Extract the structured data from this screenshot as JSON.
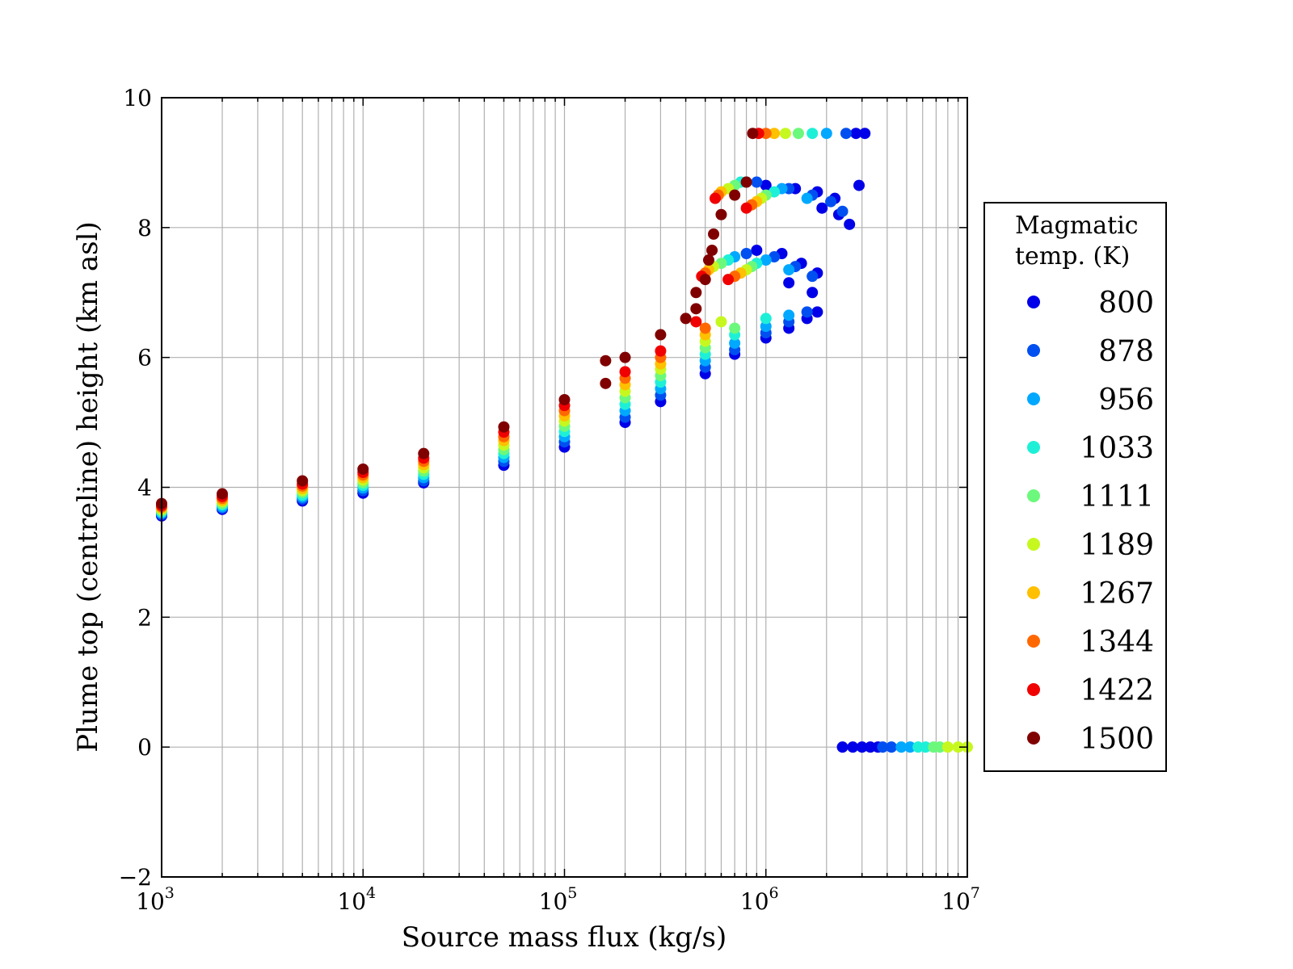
{
  "chart_data": {
    "type": "scatter",
    "xlabel": "Source mass flux (kg/s)",
    "ylabel": "Plume top (centreline) height (km asl)",
    "x_scale": "log",
    "xlim": [
      1000,
      10000000
    ],
    "ylim": [
      -2,
      10
    ],
    "x_ticks": [
      {
        "base": "10",
        "exp": "3",
        "value": 1000
      },
      {
        "base": "10",
        "exp": "4",
        "value": 10000
      },
      {
        "base": "10",
        "exp": "5",
        "value": 100000
      },
      {
        "base": "10",
        "exp": "6",
        "value": 1000000
      },
      {
        "base": "10",
        "exp": "7",
        "value": 10000000
      }
    ],
    "y_ticks": [
      {
        "label": "−2",
        "value": -2
      },
      {
        "label": "0",
        "value": 0
      },
      {
        "label": "2",
        "value": 2
      },
      {
        "label": "4",
        "value": 4
      },
      {
        "label": "6",
        "value": 6
      },
      {
        "label": "8",
        "value": 8
      },
      {
        "label": "10",
        "value": 10
      }
    ],
    "grid": true,
    "legend": {
      "title_lines": [
        "Magmatic",
        "temp. (K)"
      ],
      "placement": "right-outside"
    },
    "series": [
      {
        "name": "800",
        "color": "#0000e8",
        "points": [
          [
            1000,
            3.56
          ],
          [
            2000,
            3.66
          ],
          [
            5000,
            3.79
          ],
          [
            10000,
            3.91
          ],
          [
            20000,
            4.07
          ],
          [
            50000,
            4.34
          ],
          [
            100000,
            4.62
          ],
          [
            200000,
            5.0
          ],
          [
            300000,
            5.32
          ],
          [
            500000,
            5.75
          ],
          [
            700000,
            6.05
          ],
          [
            1000000,
            6.3
          ],
          [
            1300000,
            6.45
          ],
          [
            1600000,
            6.6
          ],
          [
            1800000,
            6.7
          ],
          [
            900000,
            7.65
          ],
          [
            1200000,
            7.6
          ],
          [
            1500000,
            7.45
          ],
          [
            1800000,
            7.3
          ],
          [
            1300000,
            7.15
          ],
          [
            1700000,
            7.0
          ],
          [
            1000000,
            8.65
          ],
          [
            1400000,
            8.6
          ],
          [
            1800000,
            8.55
          ],
          [
            2200000,
            8.45
          ],
          [
            1900000,
            8.3
          ],
          [
            2300000,
            8.2
          ],
          [
            2600000,
            8.05
          ],
          [
            2900000,
            8.65
          ],
          [
            2800000,
            9.45
          ],
          [
            3100000,
            9.45
          ],
          [
            2400000,
            0
          ],
          [
            2700000,
            0
          ],
          [
            3000000,
            0
          ],
          [
            3300000,
            0
          ],
          [
            3600000,
            0
          ]
        ]
      },
      {
        "name": "878",
        "color": "#004ff0",
        "points": [
          [
            1000,
            3.58
          ],
          [
            2000,
            3.68
          ],
          [
            5000,
            3.82
          ],
          [
            10000,
            3.95
          ],
          [
            20000,
            4.1
          ],
          [
            50000,
            4.4
          ],
          [
            100000,
            4.7
          ],
          [
            200000,
            5.08
          ],
          [
            300000,
            5.42
          ],
          [
            500000,
            5.85
          ],
          [
            700000,
            6.12
          ],
          [
            1000000,
            6.38
          ],
          [
            1300000,
            6.55
          ],
          [
            1600000,
            6.7
          ],
          [
            800000,
            7.6
          ],
          [
            1100000,
            7.55
          ],
          [
            1400000,
            7.4
          ],
          [
            1700000,
            7.25
          ],
          [
            900000,
            8.7
          ],
          [
            1300000,
            8.6
          ],
          [
            1700000,
            8.5
          ],
          [
            2100000,
            8.4
          ],
          [
            2400000,
            8.25
          ],
          [
            2500000,
            9.45
          ],
          [
            3800000,
            0
          ],
          [
            4200000,
            0
          ]
        ]
      },
      {
        "name": "956",
        "color": "#00a8ff",
        "points": [
          [
            1000,
            3.6
          ],
          [
            2000,
            3.7
          ],
          [
            5000,
            3.85
          ],
          [
            10000,
            3.99
          ],
          [
            20000,
            4.15
          ],
          [
            50000,
            4.46
          ],
          [
            100000,
            4.78
          ],
          [
            200000,
            5.18
          ],
          [
            300000,
            5.52
          ],
          [
            500000,
            5.95
          ],
          [
            700000,
            6.22
          ],
          [
            1000000,
            6.48
          ],
          [
            1300000,
            6.65
          ],
          [
            700000,
            7.55
          ],
          [
            1000000,
            7.5
          ],
          [
            1300000,
            7.35
          ],
          [
            800000,
            8.7
          ],
          [
            1200000,
            8.6
          ],
          [
            1600000,
            8.45
          ],
          [
            2000000,
            9.45
          ],
          [
            4700000,
            0
          ],
          [
            5200000,
            0
          ]
        ]
      },
      {
        "name": "1033",
        "color": "#1ef0d8",
        "points": [
          [
            1000,
            3.62
          ],
          [
            2000,
            3.73
          ],
          [
            5000,
            3.88
          ],
          [
            10000,
            4.03
          ],
          [
            20000,
            4.2
          ],
          [
            50000,
            4.52
          ],
          [
            100000,
            4.86
          ],
          [
            200000,
            5.28
          ],
          [
            300000,
            5.62
          ],
          [
            500000,
            6.05
          ],
          [
            700000,
            6.35
          ],
          [
            1000000,
            6.6
          ],
          [
            650000,
            7.5
          ],
          [
            900000,
            7.45
          ],
          [
            750000,
            8.7
          ],
          [
            1100000,
            8.55
          ],
          [
            1700000,
            9.45
          ],
          [
            5700000,
            0
          ],
          [
            6200000,
            0
          ]
        ]
      },
      {
        "name": "1111",
        "color": "#6cf87c",
        "points": [
          [
            1000,
            3.64
          ],
          [
            2000,
            3.75
          ],
          [
            5000,
            3.92
          ],
          [
            10000,
            4.07
          ],
          [
            20000,
            4.25
          ],
          [
            50000,
            4.58
          ],
          [
            100000,
            4.94
          ],
          [
            200000,
            5.38
          ],
          [
            300000,
            5.72
          ],
          [
            500000,
            6.15
          ],
          [
            700000,
            6.45
          ],
          [
            600000,
            7.45
          ],
          [
            850000,
            7.4
          ],
          [
            700000,
            8.65
          ],
          [
            1000000,
            8.5
          ],
          [
            1450000,
            9.45
          ],
          [
            6800000,
            0
          ],
          [
            7300000,
            0
          ]
        ]
      },
      {
        "name": "1189",
        "color": "#c6f820",
        "points": [
          [
            1000,
            3.66
          ],
          [
            2000,
            3.78
          ],
          [
            5000,
            3.95
          ],
          [
            10000,
            4.11
          ],
          [
            20000,
            4.3
          ],
          [
            50000,
            4.65
          ],
          [
            100000,
            5.02
          ],
          [
            200000,
            5.48
          ],
          [
            300000,
            5.82
          ],
          [
            500000,
            6.25
          ],
          [
            600000,
            6.55
          ],
          [
            550000,
            7.4
          ],
          [
            800000,
            7.35
          ],
          [
            650000,
            8.6
          ],
          [
            950000,
            8.45
          ],
          [
            1250000,
            9.45
          ],
          [
            8000000,
            0
          ],
          [
            9000000,
            0
          ],
          [
            10000000,
            0
          ]
        ]
      },
      {
        "name": "1267",
        "color": "#ffc000",
        "points": [
          [
            1000,
            3.68
          ],
          [
            2000,
            3.8
          ],
          [
            5000,
            3.98
          ],
          [
            10000,
            4.15
          ],
          [
            20000,
            4.35
          ],
          [
            50000,
            4.72
          ],
          [
            100000,
            5.1
          ],
          [
            200000,
            5.58
          ],
          [
            300000,
            5.9
          ],
          [
            500000,
            6.35
          ],
          [
            520000,
            7.35
          ],
          [
            750000,
            7.3
          ],
          [
            600000,
            8.55
          ],
          [
            900000,
            8.4
          ],
          [
            1100000,
            9.45
          ]
        ]
      },
      {
        "name": "1344",
        "color": "#ff6800",
        "points": [
          [
            1000,
            3.7
          ],
          [
            2000,
            3.83
          ],
          [
            5000,
            4.02
          ],
          [
            10000,
            4.19
          ],
          [
            20000,
            4.4
          ],
          [
            50000,
            4.78
          ],
          [
            100000,
            5.18
          ],
          [
            200000,
            5.68
          ],
          [
            300000,
            6.0
          ],
          [
            500000,
            6.45
          ],
          [
            500000,
            7.3
          ],
          [
            700000,
            7.25
          ],
          [
            580000,
            8.5
          ],
          [
            850000,
            8.35
          ],
          [
            1000000,
            9.45
          ]
        ]
      },
      {
        "name": "1422",
        "color": "#f00000",
        "points": [
          [
            1000,
            3.72
          ],
          [
            2000,
            3.86
          ],
          [
            5000,
            4.05
          ],
          [
            10000,
            4.23
          ],
          [
            20000,
            4.45
          ],
          [
            50000,
            4.85
          ],
          [
            100000,
            5.26
          ],
          [
            200000,
            5.78
          ],
          [
            300000,
            6.1
          ],
          [
            450000,
            6.55
          ],
          [
            480000,
            7.25
          ],
          [
            650000,
            7.2
          ],
          [
            560000,
            8.45
          ],
          [
            800000,
            8.3
          ],
          [
            920000,
            9.45
          ]
        ]
      },
      {
        "name": "1500",
        "color": "#800000",
        "points": [
          [
            1000,
            3.75
          ],
          [
            2000,
            3.9
          ],
          [
            5000,
            4.1
          ],
          [
            10000,
            4.28
          ],
          [
            20000,
            4.52
          ],
          [
            50000,
            4.93
          ],
          [
            100000,
            5.35
          ],
          [
            160000,
            5.6
          ],
          [
            160000,
            5.95
          ],
          [
            200000,
            6.0
          ],
          [
            300000,
            6.35
          ],
          [
            400000,
            6.6
          ],
          [
            450000,
            6.75
          ],
          [
            450000,
            7.0
          ],
          [
            500000,
            7.2
          ],
          [
            520000,
            7.5
          ],
          [
            540000,
            7.65
          ],
          [
            550000,
            7.9
          ],
          [
            600000,
            8.2
          ],
          [
            700000,
            8.5
          ],
          [
            800000,
            8.7
          ],
          [
            860000,
            9.45
          ]
        ]
      }
    ]
  }
}
